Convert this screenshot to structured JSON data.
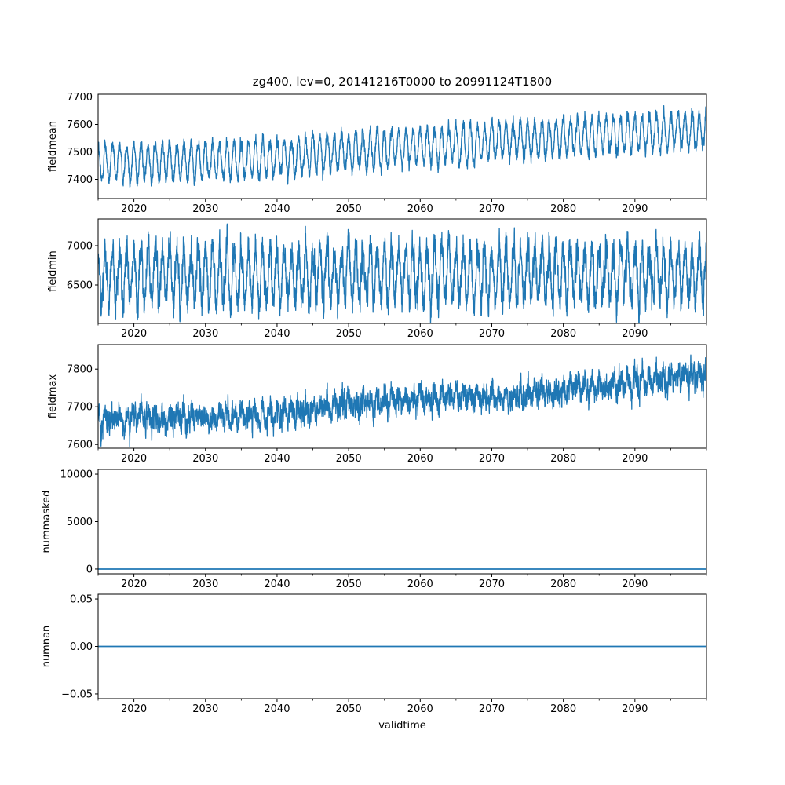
{
  "figure": {
    "title": "zg400, lev=0, 20141216T0000 to 20991124T1800",
    "xlabel": "validtime",
    "line_color": "#1f77b4"
  },
  "chart_data": [
    {
      "type": "line",
      "ylabel": "fieldmean",
      "xlim": [
        2015.0,
        2100.0
      ],
      "x_ticks": [
        2020,
        2030,
        2040,
        2050,
        2060,
        2070,
        2080,
        2090
      ],
      "x_tick_labels": [
        "2020",
        "2030",
        "2040",
        "2050",
        "2060",
        "2070",
        "2080",
        "2090"
      ],
      "ylim": [
        7330,
        7710
      ],
      "y_ticks": [
        7400,
        7500,
        7600,
        7700
      ],
      "y_tick_labels": [
        "7400",
        "7500",
        "7600",
        "7700"
      ],
      "series": [
        {
          "trend": [
            [
              2015,
              7460
            ],
            [
              2035,
              7470
            ],
            [
              2060,
              7520
            ],
            [
              2080,
              7555
            ],
            [
              2100,
              7580
            ]
          ],
          "seasonal_amplitude": 65,
          "noise": 18
        }
      ]
    },
    {
      "type": "line",
      "ylabel": "fieldmin",
      "xlim": [
        2015.0,
        2100.0
      ],
      "x_ticks": [
        2020,
        2030,
        2040,
        2050,
        2060,
        2070,
        2080,
        2090
      ],
      "x_tick_labels": [
        "2020",
        "2030",
        "2040",
        "2050",
        "2060",
        "2070",
        "2080",
        "2090"
      ],
      "ylim": [
        6010,
        7340
      ],
      "y_ticks": [
        6500,
        7000
      ],
      "y_tick_labels": [
        "6500",
        "7000"
      ],
      "series": [
        {
          "trend": [
            [
              2015,
              6620
            ],
            [
              2100,
              6650
            ]
          ],
          "seasonal_amplitude": 330,
          "noise": 160
        }
      ]
    },
    {
      "type": "line",
      "ylabel": "fieldmax",
      "xlim": [
        2015.0,
        2100.0
      ],
      "x_ticks": [
        2020,
        2030,
        2040,
        2050,
        2060,
        2070,
        2080,
        2090
      ],
      "x_tick_labels": [
        "2020",
        "2030",
        "2040",
        "2050",
        "2060",
        "2070",
        "2080",
        "2090"
      ],
      "ylim": [
        7590,
        7865
      ],
      "y_ticks": [
        7600,
        7700,
        7800
      ],
      "y_tick_labels": [
        "7600",
        "7700",
        "7800"
      ],
      "series": [
        {
          "trend": [
            [
              2015,
              7665
            ],
            [
              2030,
              7670
            ],
            [
              2040,
              7680
            ],
            [
              2050,
              7705
            ],
            [
              2060,
              7720
            ],
            [
              2070,
              7725
            ],
            [
              2080,
              7745
            ],
            [
              2090,
              7765
            ],
            [
              2100,
              7785
            ]
          ],
          "seasonal_amplitude": 15,
          "noise": 25
        }
      ]
    },
    {
      "type": "line",
      "ylabel": "nummasked",
      "xlim": [
        2015.0,
        2100.0
      ],
      "x_ticks": [
        2020,
        2030,
        2040,
        2050,
        2060,
        2070,
        2080,
        2090
      ],
      "x_tick_labels": [
        "2020",
        "2030",
        "2040",
        "2050",
        "2060",
        "2070",
        "2080",
        "2090"
      ],
      "ylim": [
        -500,
        10500
      ],
      "y_ticks": [
        0,
        5000,
        10000
      ],
      "y_tick_labels": [
        "0",
        "5000",
        "10000"
      ],
      "series": [
        {
          "x": [
            2015.0,
            2100.0
          ],
          "values": [
            0,
            0
          ]
        }
      ]
    },
    {
      "type": "line",
      "ylabel": "numnan",
      "xlim": [
        2015.0,
        2100.0
      ],
      "x_ticks": [
        2020,
        2030,
        2040,
        2050,
        2060,
        2070,
        2080,
        2090
      ],
      "x_tick_labels": [
        "2020",
        "2030",
        "2040",
        "2050",
        "2060",
        "2070",
        "2080",
        "2090"
      ],
      "ylim": [
        -0.055,
        0.055
      ],
      "y_ticks": [
        -0.05,
        0.0,
        0.05
      ],
      "y_tick_labels": [
        "−0.05",
        "0.00",
        "0.05"
      ],
      "series": [
        {
          "x": [
            2015.0,
            2100.0
          ],
          "values": [
            0,
            0
          ]
        }
      ]
    }
  ]
}
